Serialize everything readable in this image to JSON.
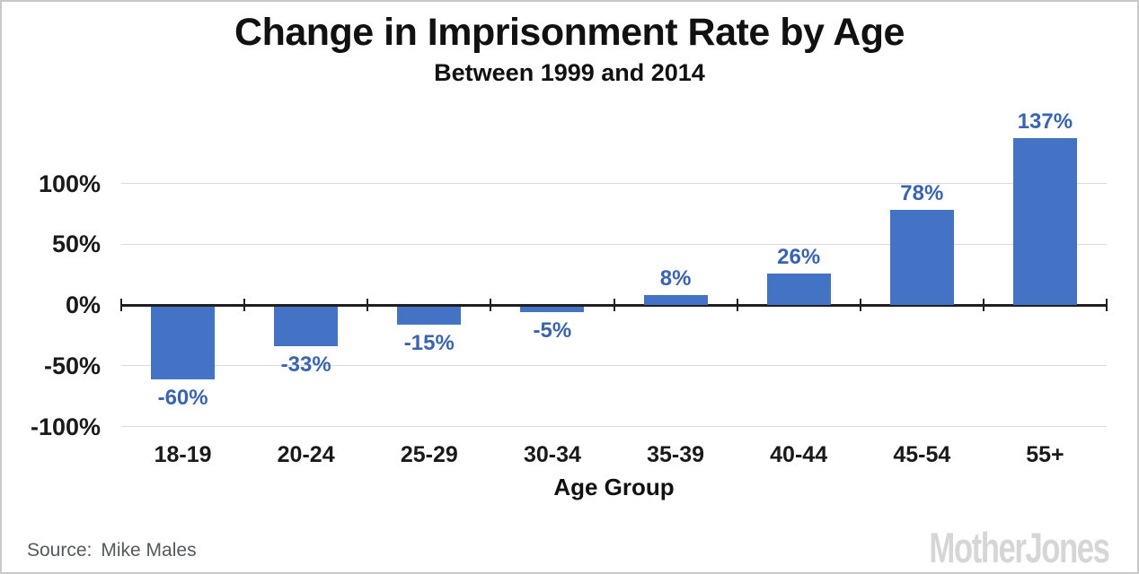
{
  "chart_data": {
    "type": "bar",
    "title": "Change in Imprisonment Rate by Age",
    "subtitle": "Between 1999 and 2014",
    "categories": [
      "18-19",
      "20-24",
      "25-29",
      "30-34",
      "35-39",
      "40-44",
      "45-54",
      "55+"
    ],
    "values": [
      -60,
      -33,
      -15,
      -5,
      8,
      26,
      78,
      137
    ],
    "data_labels": [
      "-60%",
      "-33%",
      "-15%",
      "-5%",
      "8%",
      "26%",
      "78%",
      "137%"
    ],
    "xlabel": "Age Group",
    "ylabel": "",
    "y_ticks": [
      100,
      50,
      0,
      -50,
      -100
    ],
    "y_tick_labels": [
      "100%",
      "50%",
      "0%",
      "-50%",
      "-100%"
    ],
    "ylim": [
      -115,
      150
    ],
    "grid": "horizontal-light",
    "legend": "none",
    "bar_color": "#4472C4",
    "value_label_color": "#3A64AF"
  },
  "colors": {
    "bar": "#4472C4",
    "value_label": "#3A64AF",
    "gridline": "#d9d9d9",
    "axis_line": "#1f1f1f",
    "axis_text": "#1a1a1a",
    "source_text": "#54595e",
    "logo": "#d6d6d6",
    "frame_border": "#c9c9c9"
  },
  "footer": {
    "source_prefix": "Source:",
    "source_text": "Mike Males",
    "brand": "MotherJones"
  }
}
